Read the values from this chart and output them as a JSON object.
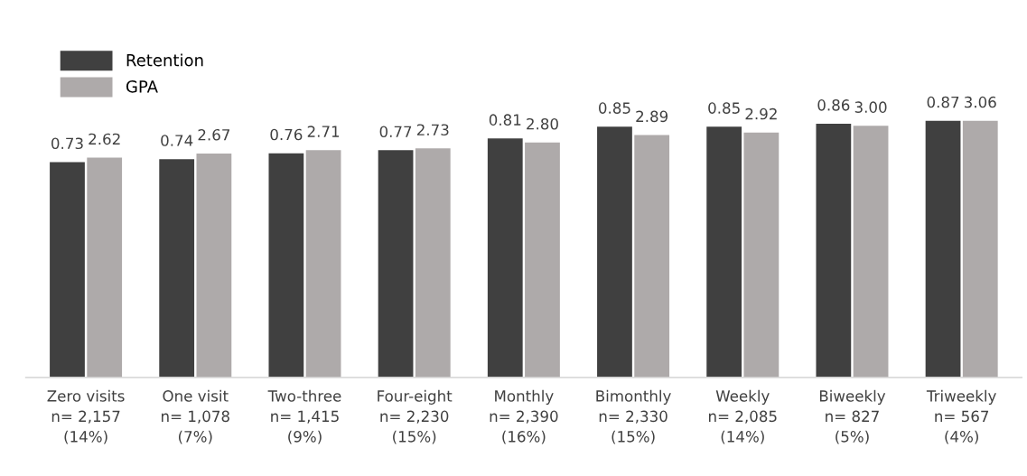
{
  "chart_data": {
    "type": "bar",
    "categories": [
      "Zero visits\nn= 2,157\n(14%)",
      "One visit\nn= 1,078\n(7%)",
      "Two-three\nn= 1,415\n(9%)",
      "Four-eight\nn= 2,230\n(15%)",
      "Monthly\nn= 2,390\n(16%)",
      "Bimonthly\nn= 2,330\n(15%)",
      "Weekly\nn= 2,085\n(14%)",
      "Biweekly\nn= 827\n(5%)",
      "Triweekly\nn= 567\n(4%)"
    ],
    "series": [
      {
        "name": "Retention",
        "color": "#404040",
        "values": [
          0.73,
          0.74,
          0.76,
          0.77,
          0.81,
          0.85,
          0.85,
          0.86,
          0.87
        ],
        "value_labels": [
          "0.73",
          "0.74",
          "0.76",
          "0.77",
          "0.81",
          "0.85",
          "0.85",
          "0.86",
          "0.87"
        ]
      },
      {
        "name": "GPA",
        "color": "#aeaaaa",
        "axis": "y2",
        "values": [
          2.62,
          2.67,
          2.71,
          2.73,
          2.8,
          2.89,
          2.92,
          3.0,
          3.06
        ],
        "value_labels": [
          "2.62",
          "2.67",
          "2.71",
          "2.73",
          "2.80",
          "2.89",
          "2.92",
          "3.00",
          "3.06"
        ]
      }
    ],
    "tick_labels": "x",
    "legend": "top left",
    "grid": false
  }
}
